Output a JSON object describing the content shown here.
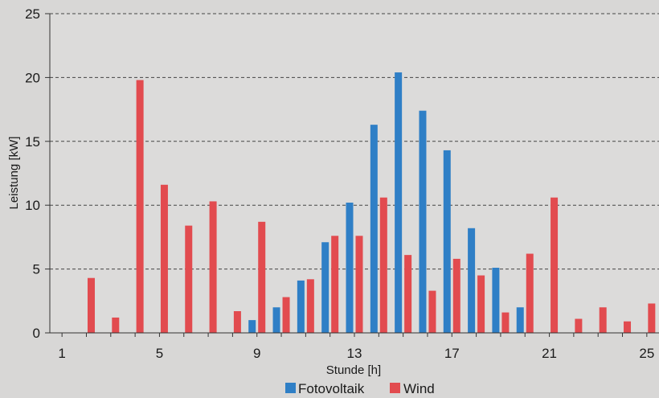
{
  "chart_data": {
    "type": "bar",
    "xlabel": "Stunde [h]",
    "ylabel": "Leistung [kW]",
    "ylim": [
      0,
      25
    ],
    "yticks": [
      0,
      5,
      10,
      15,
      20,
      25
    ],
    "xlim": [
      0.5,
      25.5
    ],
    "xticks": [
      1,
      5,
      9,
      13,
      17,
      21,
      25
    ],
    "grid": "horizontal dashed",
    "legend_position": "bottom-center",
    "categories": [
      1,
      2,
      3,
      4,
      5,
      6,
      7,
      8,
      9,
      10,
      11,
      12,
      13,
      14,
      15,
      16,
      17,
      18,
      19,
      20,
      21,
      22,
      23,
      24,
      25
    ],
    "series": [
      {
        "name": "Fotovoltaik",
        "color": "#2f7fc6",
        "values": [
          0,
          0,
          0,
          0,
          0,
          0,
          0,
          0,
          1.0,
          2.0,
          4.1,
          7.1,
          10.2,
          16.3,
          20.4,
          17.4,
          14.3,
          8.2,
          5.1,
          2.0,
          0,
          0,
          0,
          0,
          0
        ]
      },
      {
        "name": "Wind",
        "color": "#e24b4f",
        "values": [
          0,
          4.3,
          1.2,
          19.8,
          11.6,
          8.4,
          10.3,
          1.7,
          8.7,
          2.8,
          4.2,
          7.6,
          7.6,
          10.6,
          6.1,
          3.3,
          5.8,
          4.5,
          1.6,
          6.2,
          10.6,
          1.1,
          2.0,
          0.9,
          2.3
        ]
      }
    ]
  }
}
